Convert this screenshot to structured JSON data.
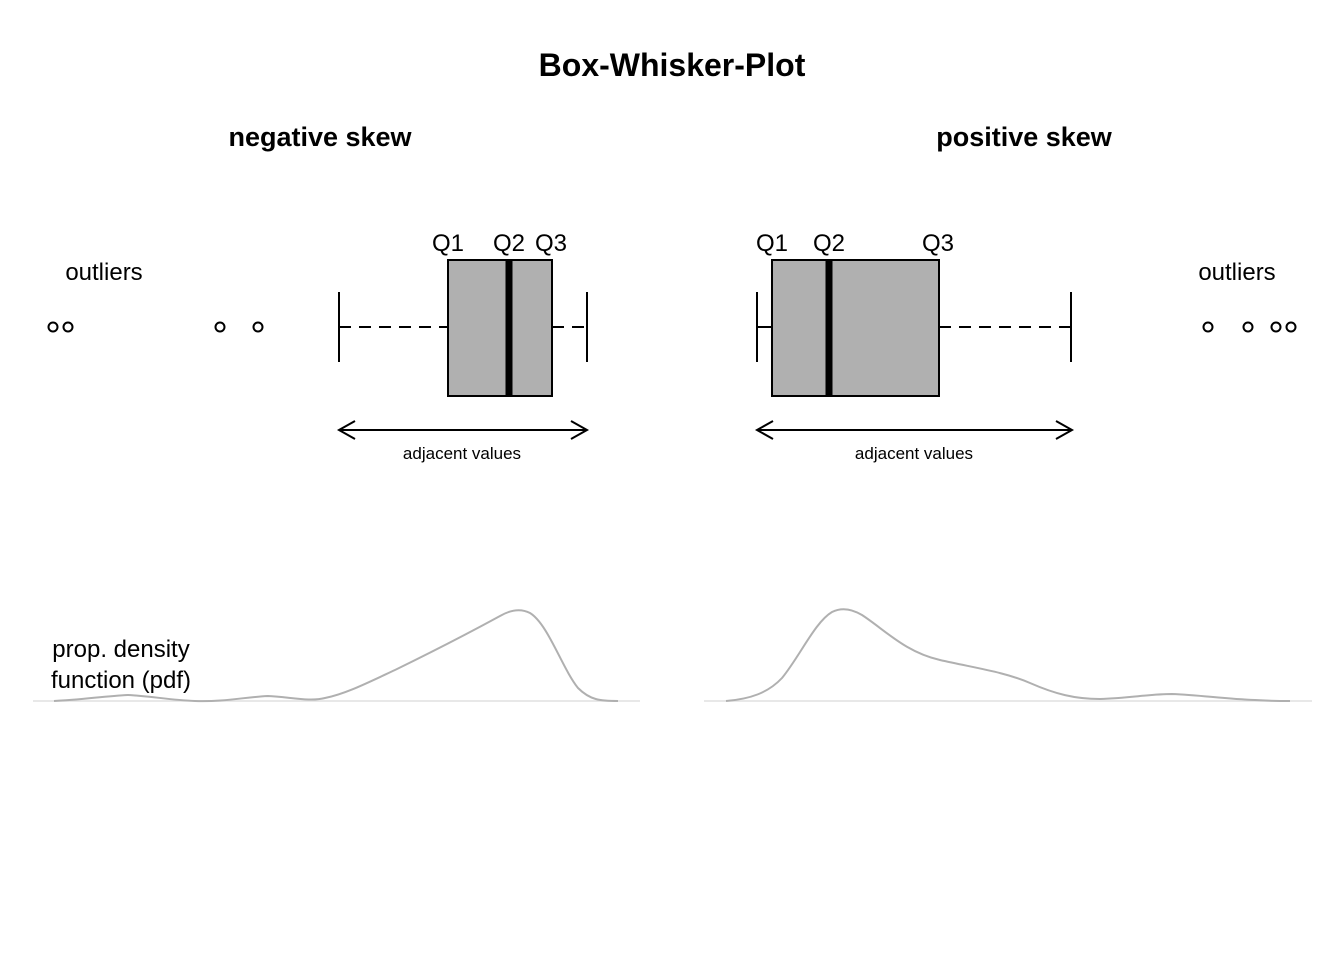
{
  "title": "Box-Whisker-Plot",
  "colors": {
    "box_fill": "#b0b0b0",
    "line": "#000000",
    "density": "#b0b0b0",
    "baseline": "#e0e0e0",
    "background": "#ffffff"
  },
  "panels": {
    "left": {
      "subtitle": "negative skew",
      "q1_label": "Q1",
      "q2_label": "Q2",
      "q3_label": "Q3",
      "outliers_label": "outliers",
      "adjacent_label": "adjacent values",
      "pdf_label_line1": "prop. density",
      "pdf_label_line2": "function (pdf)"
    },
    "right": {
      "subtitle": "positive skew",
      "q1_label": "Q1",
      "q2_label": "Q2",
      "q3_label": "Q3",
      "outliers_label": "outliers",
      "adjacent_label": "adjacent values"
    }
  }
}
